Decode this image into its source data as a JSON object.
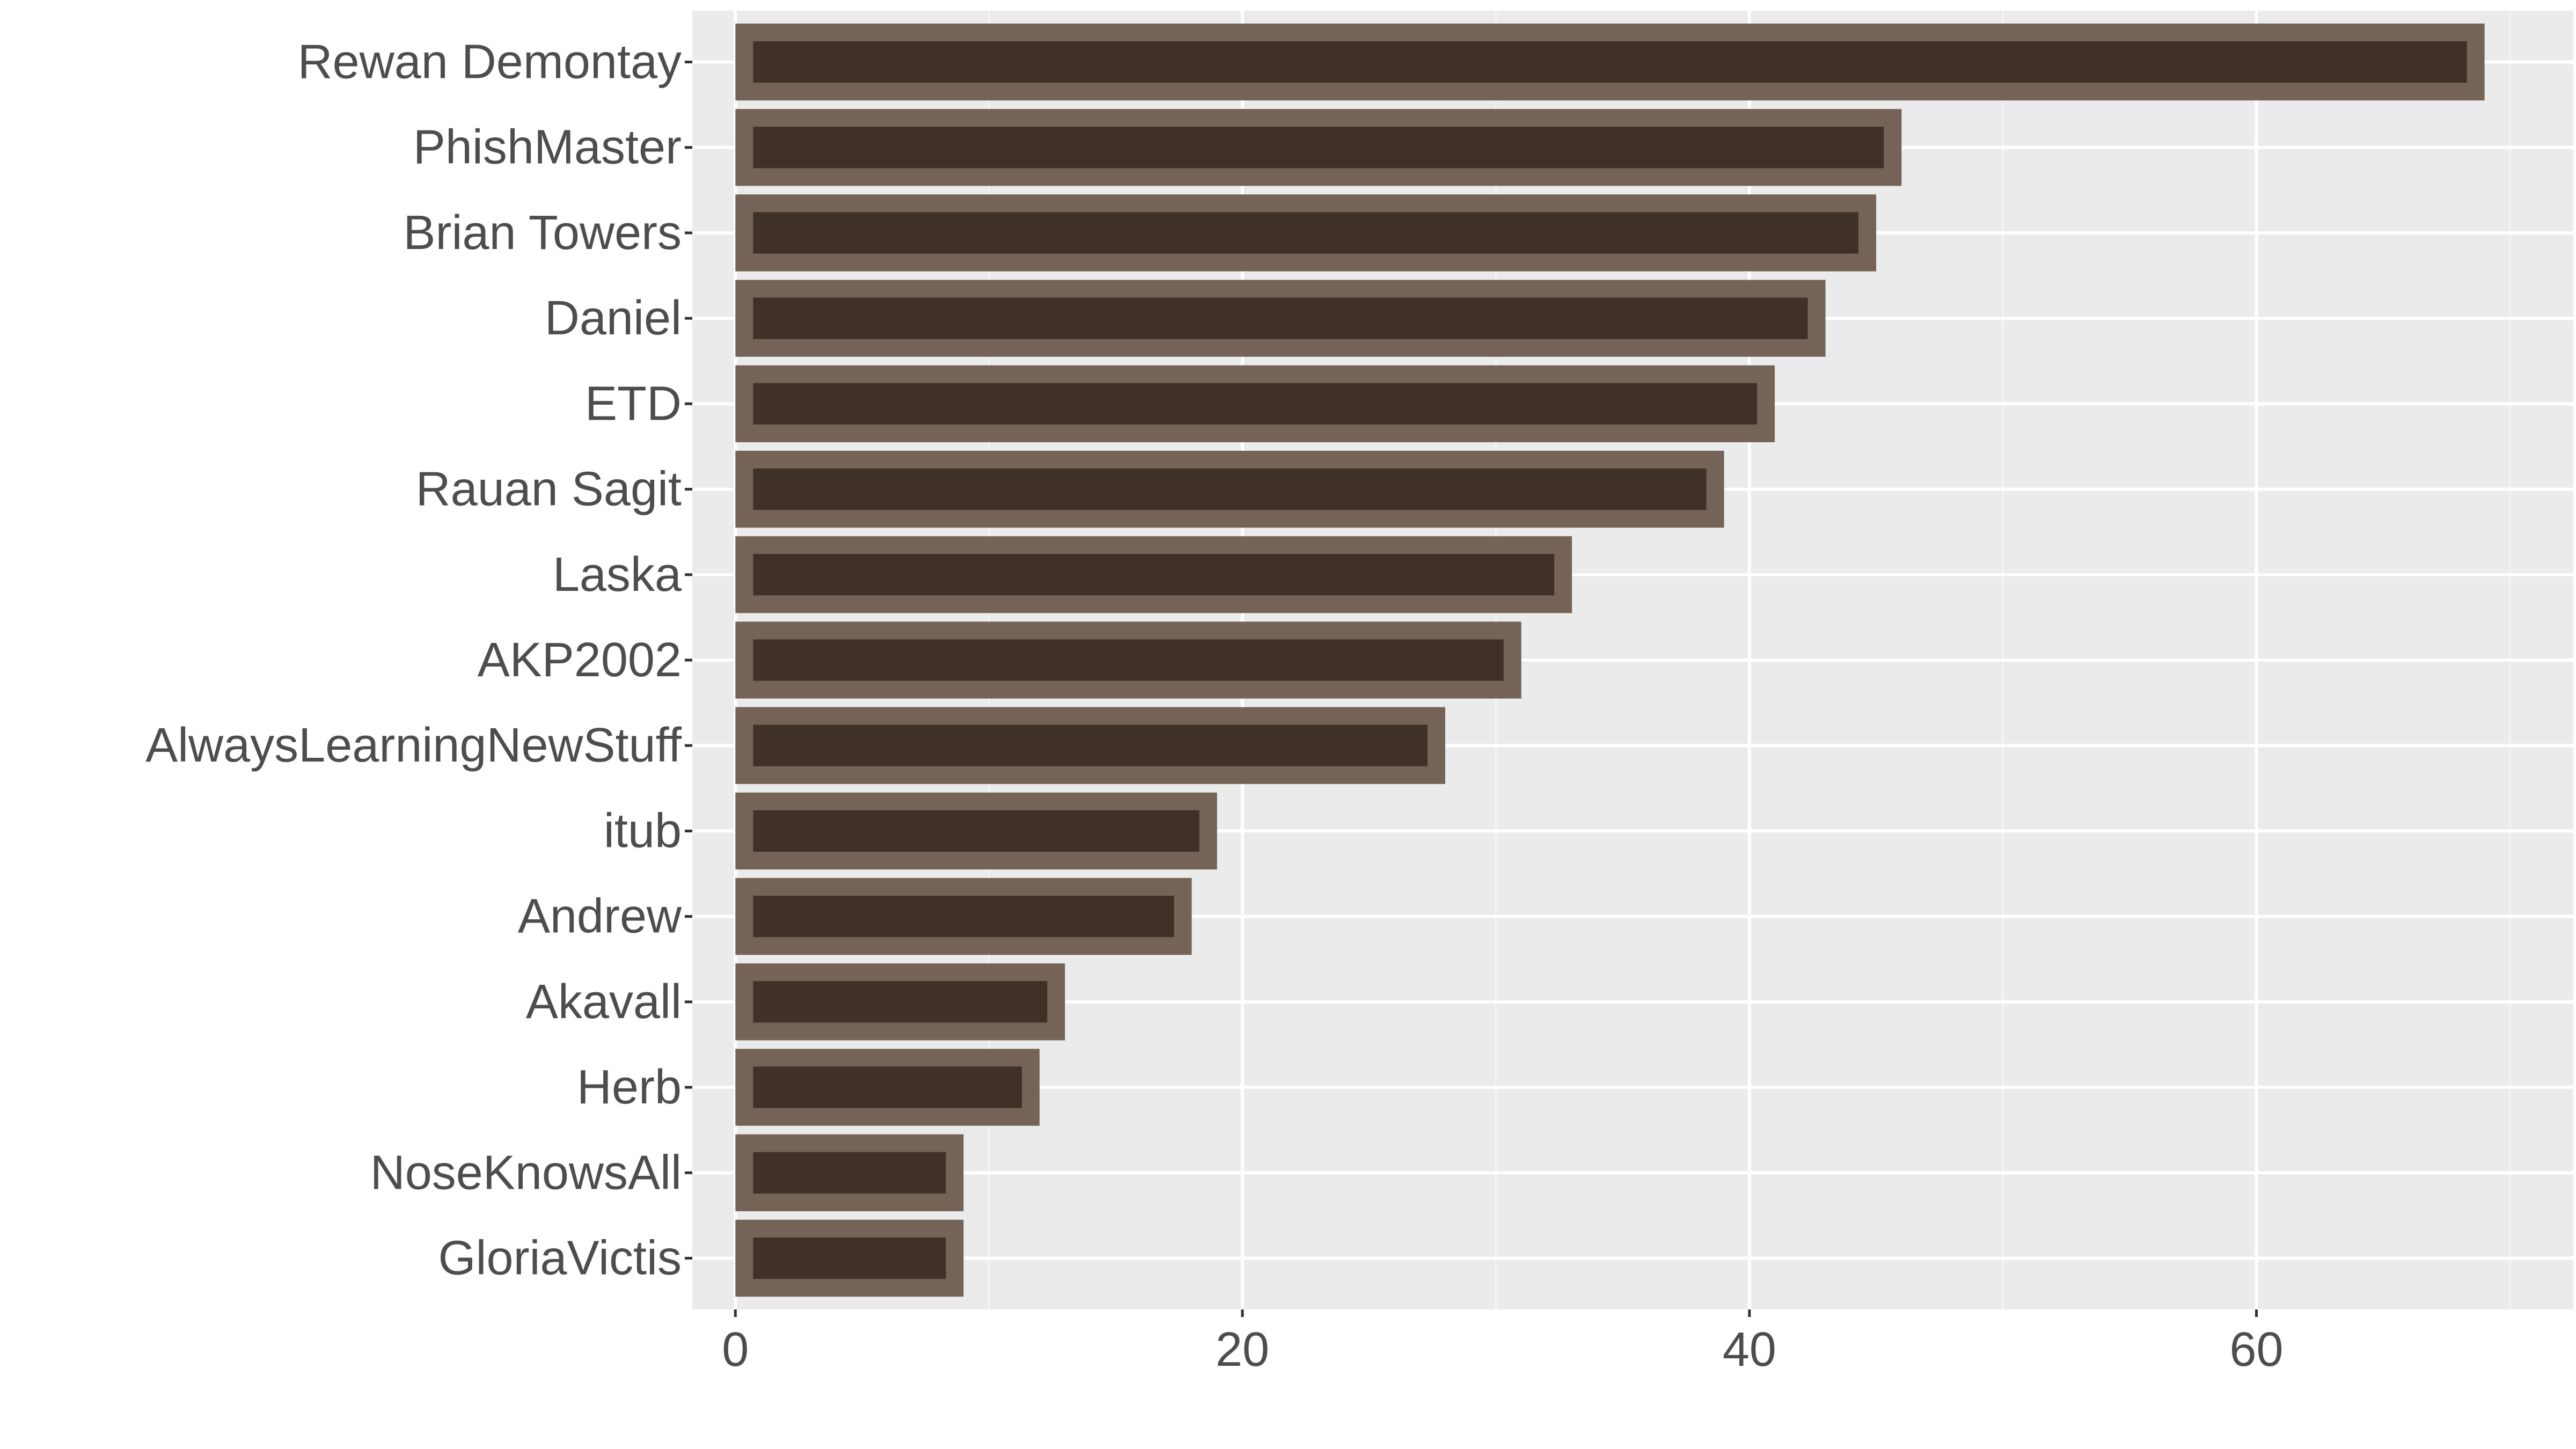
{
  "chart_data": {
    "type": "bar",
    "orientation": "horizontal",
    "categories": [
      "Rewan Demontay",
      "PhishMaster",
      "Brian Towers",
      "Daniel",
      "ETD",
      "Rauan Sagit",
      "Laska",
      "AKP2002",
      "AlwaysLearningNewStuff",
      "itub",
      "Andrew",
      "Akavall",
      "Herb",
      "NoseKnowsAll",
      "GloriaVictis"
    ],
    "values": [
      69,
      46,
      45,
      43,
      41,
      39,
      33,
      31,
      28,
      19,
      18,
      13,
      12,
      9,
      9
    ],
    "title": "",
    "xlabel": "",
    "ylabel": "",
    "xlim": [
      -1.7,
      72.5
    ],
    "xticks": [
      0,
      20,
      40,
      60
    ],
    "xtick_labels": [
      "0",
      "20",
      "40",
      "60"
    ],
    "grid": true,
    "colors": {
      "panel": "#ebebeb",
      "grid_major": "#ffffff",
      "grid_minor": "#f5f5f5",
      "bar_outline": "#756358",
      "bar_fill": "#403128",
      "text": "#4d4d4d",
      "tick": "#333333"
    }
  }
}
